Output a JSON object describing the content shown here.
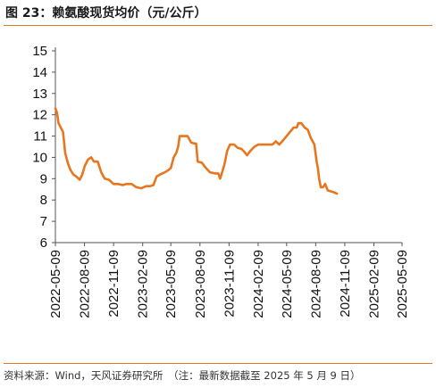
{
  "header": {
    "title": "图 23：赖氨酸现货均价（元/公斤）"
  },
  "footer": {
    "source": "资料来源：Wind，天风证券研究所　（注：最新数据截至 2025 年 5 月 9 日）"
  },
  "colors": {
    "accent": "#e07a20",
    "line": "#e8761e",
    "axis": "#555555"
  },
  "chart_data": {
    "type": "line",
    "title": "赖氨酸现货均价（元/公斤）",
    "xlabel": "",
    "ylabel": "",
    "ylim": [
      6,
      15
    ],
    "yticks": [
      6,
      7,
      8,
      9,
      10,
      11,
      12,
      13,
      14,
      15
    ],
    "xlim": [
      "2022-05-09",
      "2025-05-09"
    ],
    "xticks": [
      "2022-05-09",
      "2022-08-09",
      "2022-11-09",
      "2023-02-09",
      "2023-05-09",
      "2023-08-09",
      "2023-11-09",
      "2024-02-09",
      "2024-05-09",
      "2024-08-09",
      "2024-11-09",
      "2025-02-09",
      "2025-05-09"
    ],
    "grid": false,
    "legend": "none",
    "series": [
      {
        "name": "",
        "points": [
          [
            "2022-05-09",
            12.3
          ],
          [
            "2022-05-14",
            12.1
          ],
          [
            "2022-05-19",
            11.6
          ],
          [
            "2022-05-26",
            11.4
          ],
          [
            "2022-06-02",
            11.2
          ],
          [
            "2022-06-09",
            10.2
          ],
          [
            "2022-06-18",
            9.7
          ],
          [
            "2022-06-26",
            9.4
          ],
          [
            "2022-07-05",
            9.2
          ],
          [
            "2022-07-14",
            9.1
          ],
          [
            "2022-07-25",
            8.95
          ],
          [
            "2022-08-02",
            9.2
          ],
          [
            "2022-08-10",
            9.6
          ],
          [
            "2022-08-20",
            9.9
          ],
          [
            "2022-08-30",
            10.0
          ],
          [
            "2022-09-08",
            9.8
          ],
          [
            "2022-09-20",
            9.8
          ],
          [
            "2022-10-01",
            9.3
          ],
          [
            "2022-10-12",
            9.0
          ],
          [
            "2022-10-25",
            8.95
          ],
          [
            "2022-11-09",
            8.75
          ],
          [
            "2022-11-24",
            8.75
          ],
          [
            "2022-12-08",
            8.7
          ],
          [
            "2022-12-20",
            8.75
          ],
          [
            "2023-01-05",
            8.75
          ],
          [
            "2023-01-20",
            8.6
          ],
          [
            "2023-02-05",
            8.55
          ],
          [
            "2023-02-20",
            8.65
          ],
          [
            "2023-03-05",
            8.65
          ],
          [
            "2023-03-15",
            8.7
          ],
          [
            "2023-03-25",
            9.1
          ],
          [
            "2023-04-05",
            9.2
          ],
          [
            "2023-04-20",
            9.3
          ],
          [
            "2023-05-01",
            9.4
          ],
          [
            "2023-05-09",
            9.5
          ],
          [
            "2023-05-18",
            10.0
          ],
          [
            "2023-05-26",
            10.2
          ],
          [
            "2023-06-01",
            10.5
          ],
          [
            "2023-06-06",
            11.0
          ],
          [
            "2023-06-18",
            11.0
          ],
          [
            "2023-07-01",
            11.0
          ],
          [
            "2023-07-12",
            10.7
          ],
          [
            "2023-07-22",
            10.65
          ],
          [
            "2023-07-28",
            10.65
          ],
          [
            "2023-08-02",
            9.8
          ],
          [
            "2023-08-15",
            9.75
          ],
          [
            "2023-08-28",
            9.5
          ],
          [
            "2023-09-10",
            9.3
          ],
          [
            "2023-09-25",
            9.25
          ],
          [
            "2023-10-06",
            9.25
          ],
          [
            "2023-10-12",
            9.0
          ],
          [
            "2023-10-18",
            9.3
          ],
          [
            "2023-10-26",
            9.7
          ],
          [
            "2023-11-03",
            10.3
          ],
          [
            "2023-11-12",
            10.6
          ],
          [
            "2023-11-25",
            10.6
          ],
          [
            "2023-12-06",
            10.45
          ],
          [
            "2023-12-18",
            10.4
          ],
          [
            "2023-12-28",
            10.25
          ],
          [
            "2024-01-05",
            10.1
          ],
          [
            "2024-01-15",
            10.3
          ],
          [
            "2024-01-28",
            10.5
          ],
          [
            "2024-02-09",
            10.6
          ],
          [
            "2024-02-25",
            10.6
          ],
          [
            "2024-03-10",
            10.6
          ],
          [
            "2024-03-25",
            10.6
          ],
          [
            "2024-04-05",
            10.75
          ],
          [
            "2024-04-16",
            10.6
          ],
          [
            "2024-04-28",
            10.8
          ],
          [
            "2024-05-09",
            11.0
          ],
          [
            "2024-05-20",
            11.2
          ],
          [
            "2024-05-31",
            11.4
          ],
          [
            "2024-06-10",
            11.4
          ],
          [
            "2024-06-15",
            11.6
          ],
          [
            "2024-06-25",
            11.6
          ],
          [
            "2024-07-05",
            11.4
          ],
          [
            "2024-07-15",
            11.3
          ],
          [
            "2024-07-25",
            10.9
          ],
          [
            "2024-08-05",
            10.6
          ],
          [
            "2024-08-12",
            9.8
          ],
          [
            "2024-08-16",
            9.5
          ],
          [
            "2024-08-20",
            9.0
          ],
          [
            "2024-08-25",
            8.6
          ],
          [
            "2024-09-01",
            8.6
          ],
          [
            "2024-09-08",
            8.75
          ],
          [
            "2024-09-16",
            8.45
          ],
          [
            "2024-09-28",
            8.4
          ],
          [
            "2024-10-08",
            8.35
          ],
          [
            "2024-10-15",
            8.3
          ]
        ]
      }
    ]
  }
}
